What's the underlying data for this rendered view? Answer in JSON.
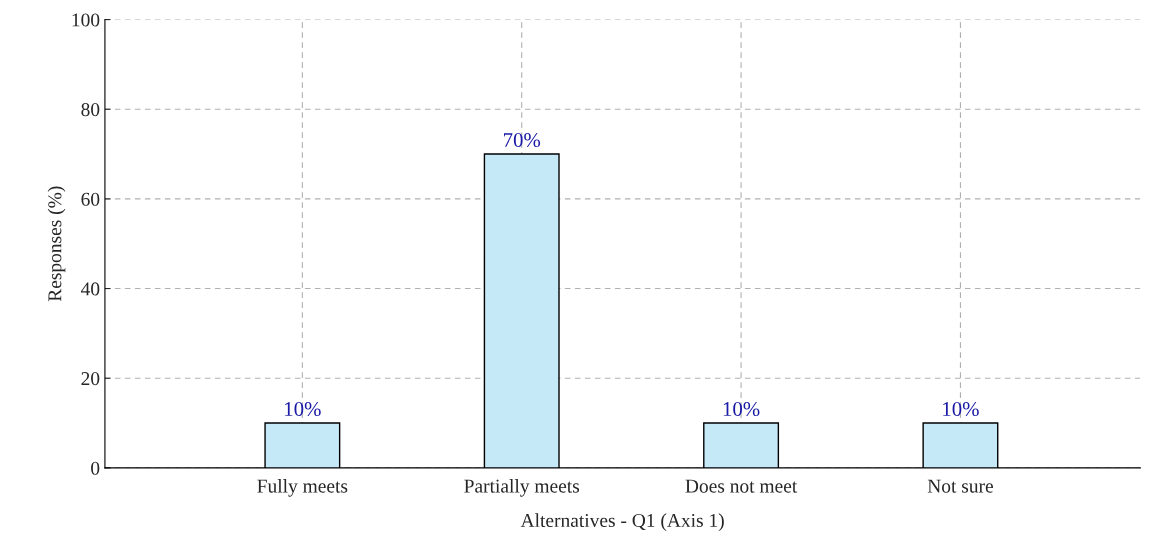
{
  "chart_data": {
    "type": "bar",
    "xlabel": "Alternatives - Q1 (Axis 1)",
    "ylabel": "Responses (%)",
    "categories": [
      "Fully meets",
      "Partially meets",
      "Does not meet",
      "Not sure"
    ],
    "values": [
      10,
      70,
      10,
      10
    ],
    "color": "#c6e9f8",
    "value_labels": [
      "10%",
      "70%",
      "10%",
      "10%"
    ],
    "ylim": [
      0,
      100
    ],
    "yticks": [
      0,
      20,
      40,
      60,
      80,
      100
    ],
    "grid": true
  }
}
